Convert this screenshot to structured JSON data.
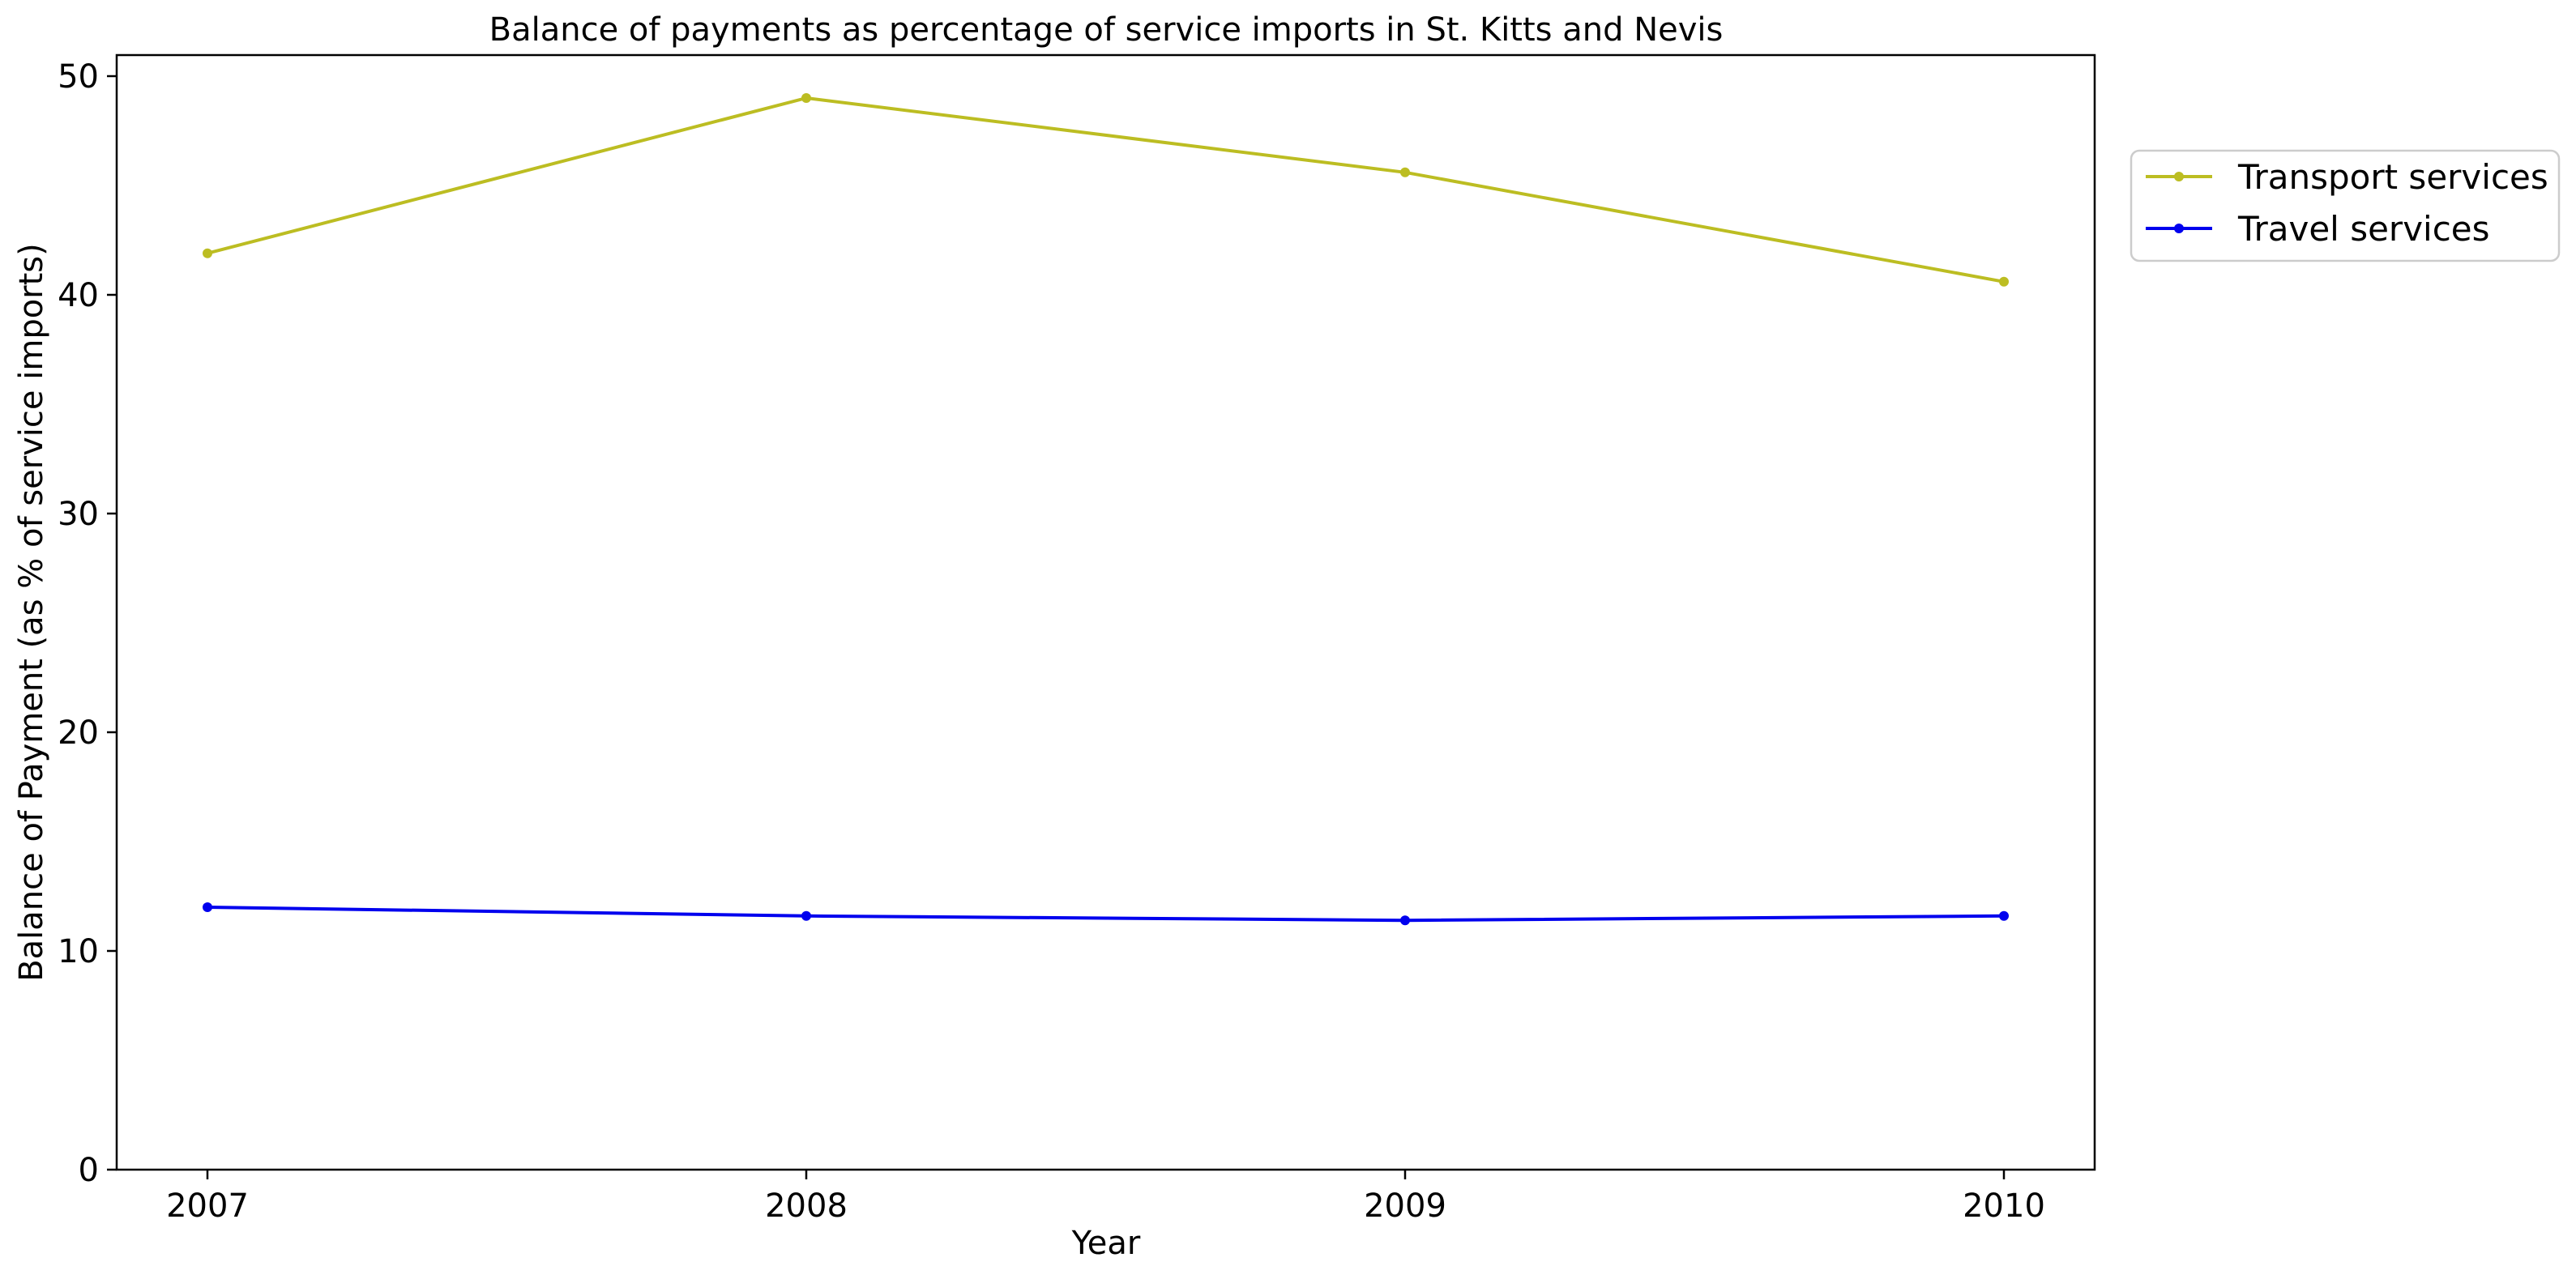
{
  "chart_data": {
    "type": "line",
    "title": "Balance of payments as percentage of service imports in St. Kitts and Nevis",
    "xlabel": "Year",
    "ylabel": "Balance of Payment (as % of service imports)",
    "x": [
      "2007",
      "2008",
      "2009",
      "2010"
    ],
    "ylim": [
      0,
      50
    ],
    "yticks": [
      "0",
      "10",
      "20",
      "30",
      "40",
      "50"
    ],
    "grid": false,
    "legend_position": "upper-right-outside",
    "series": [
      {
        "name": "Transport services",
        "color": "#bcbd22",
        "values": [
          41.9,
          49.0,
          45.6,
          40.6
        ]
      },
      {
        "name": "Travel services",
        "color": "#0000ee",
        "values": [
          12.0,
          11.6,
          11.4,
          11.6
        ]
      }
    ]
  }
}
